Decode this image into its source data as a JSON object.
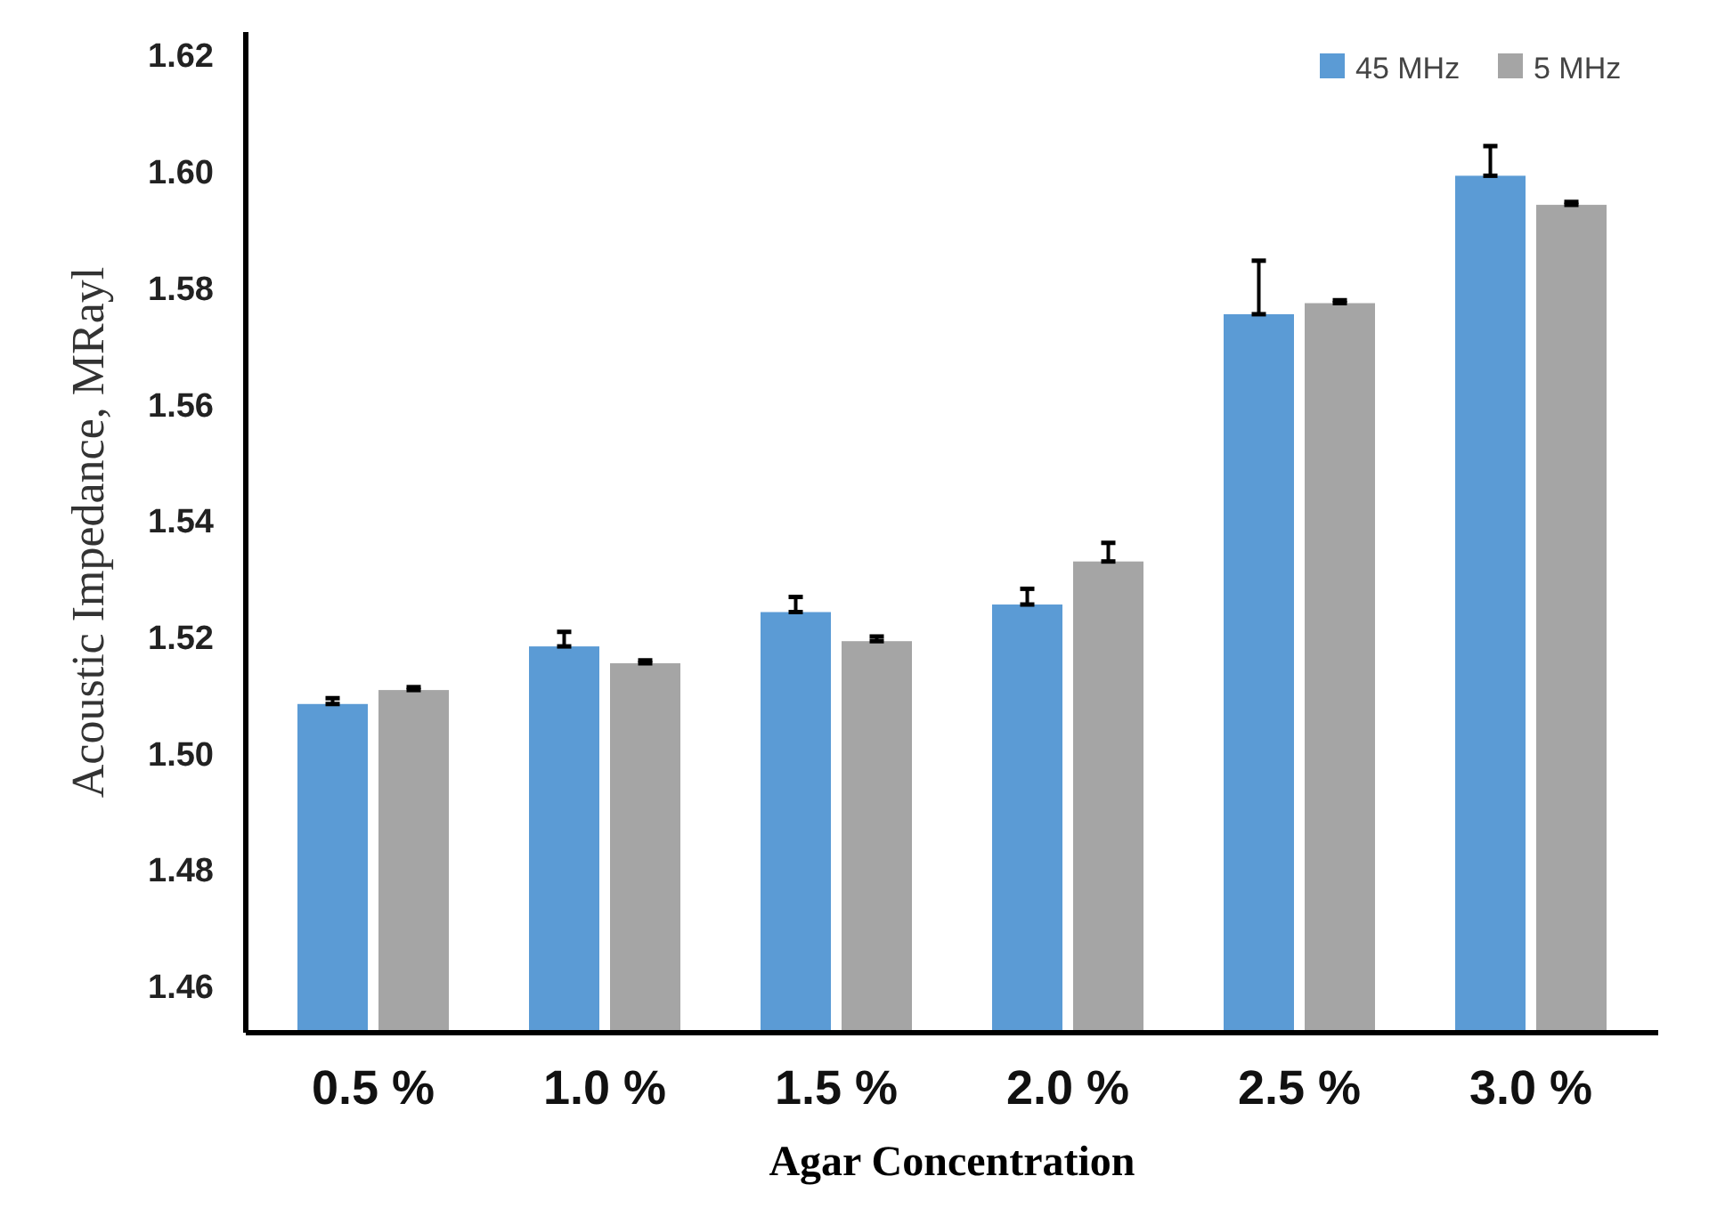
{
  "chart_data": {
    "type": "bar",
    "xlabel": "Agar Concentration",
    "ylabel": "Acoustic Impedance, MRayl",
    "categories": [
      "0.5 %",
      "1.0 %",
      "1.5 %",
      "2.0 %",
      "2.5 %",
      "3.0 %"
    ],
    "series": [
      {
        "name": "45 MHz",
        "color": "#5b9bd5",
        "values": [
          1.5085,
          1.5184,
          1.5243,
          1.5256,
          1.5755,
          1.5993
        ],
        "errors": [
          [
            1.5085,
            1.5095
          ],
          [
            1.5184,
            1.5209
          ],
          [
            1.5243,
            1.5269
          ],
          [
            1.5256,
            1.5283
          ],
          [
            1.5755,
            1.5847
          ],
          [
            1.5993,
            1.6044
          ]
        ]
      },
      {
        "name": "5 MHz",
        "color": "#a5a5a5",
        "values": [
          1.5109,
          1.5155,
          1.5193,
          1.533,
          1.5774,
          1.5943
        ],
        "errors": [
          [
            1.5109,
            1.5114
          ],
          [
            1.5155,
            1.516
          ],
          [
            1.5193,
            1.5201
          ],
          [
            1.533,
            1.5362
          ],
          [
            1.5774,
            1.5779
          ],
          [
            1.5943,
            1.5948
          ]
        ]
      }
    ],
    "ylim": [
      1.452,
      1.624
    ],
    "yticks": [
      1.46,
      1.48,
      {
        "value": 1.5,
        "label": "1.50"
      },
      1.52,
      1.54,
      1.56,
      1.58,
      {
        "value": 1.6,
        "label": "1.60"
      },
      1.62
    ],
    "grid": false,
    "legend": "top right"
  }
}
